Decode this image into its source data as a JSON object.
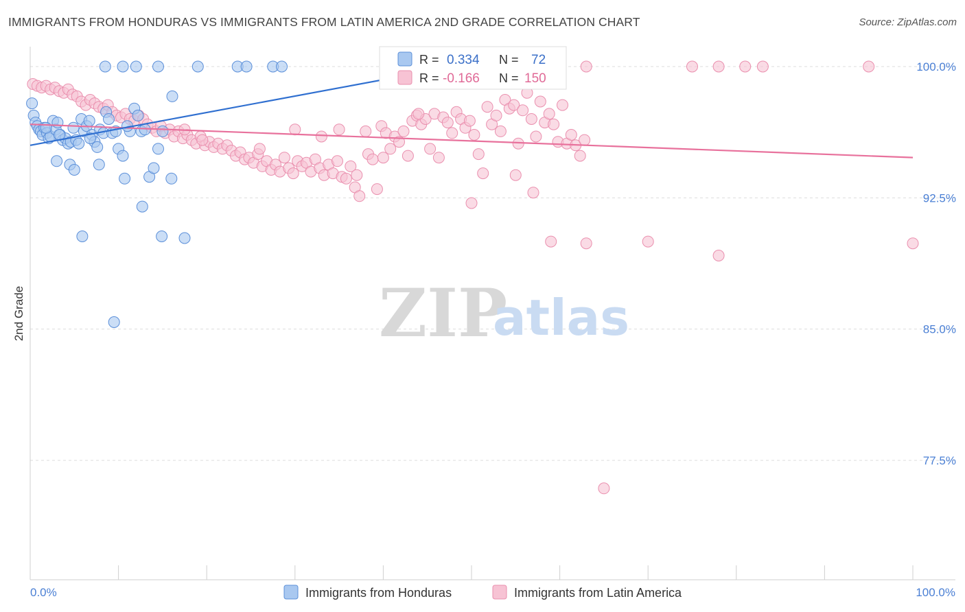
{
  "title": "IMMIGRANTS FROM HONDURAS VS IMMIGRANTS FROM LATIN AMERICA 2ND GRADE CORRELATION CHART",
  "source": "Source: ZipAtlas.com",
  "watermark": {
    "zip": "ZIP",
    "atlas": "atlas"
  },
  "colors": {
    "blue_fill": "#a9c8f0",
    "blue_stroke": "#5b8fd9",
    "blue_line": "#2f6fd0",
    "pink_fill": "#f7c3d4",
    "pink_stroke": "#ea8fae",
    "pink_line": "#e8719c",
    "grid": "#dddddd",
    "tick_text": "#4a7fd4"
  },
  "legend_box": {
    "rows": [
      {
        "r_label": "R =",
        "r_value": "0.334",
        "n_label": "N =",
        "n_value": "72",
        "color": "blue"
      },
      {
        "r_label": "R =",
        "r_value": "-0.166",
        "n_label": "N =",
        "n_value": "150",
        "color": "pink"
      }
    ]
  },
  "chart_data": {
    "type": "scatter",
    "title": "IMMIGRANTS FROM HONDURAS VS IMMIGRANTS FROM LATIN AMERICA 2ND GRADE CORRELATION CHART",
    "xlabel": "",
    "ylabel": "2nd Grade",
    "xlim": [
      0,
      100
    ],
    "ylim": [
      70,
      100.7
    ],
    "x_tick_labels": [
      "0.0%",
      "100.0%"
    ],
    "y_ticks": [
      {
        "value": 100.0,
        "label": "100.0%"
      },
      {
        "value": 92.5,
        "label": "92.5%"
      },
      {
        "value": 85.0,
        "label": "85.0%"
      },
      {
        "value": 77.5,
        "label": "77.5%"
      }
    ],
    "grid": true,
    "legend_position": "bottom",
    "series": [
      {
        "name": "Immigrants from Honduras",
        "color": "blue",
        "trend": {
          "x0": 0,
          "y0": 95.5,
          "x1": 48,
          "y1": 100.0
        },
        "points": [
          [
            0.2,
            97.9
          ],
          [
            0.4,
            97.2
          ],
          [
            0.6,
            96.8
          ],
          [
            0.8,
            96.6
          ],
          [
            1.0,
            96.4
          ],
          [
            1.2,
            96.3
          ],
          [
            1.4,
            96.1
          ],
          [
            1.6,
            96.5
          ],
          [
            1.9,
            96.2
          ],
          [
            2.1,
            95.9
          ],
          [
            2.3,
            96.0
          ],
          [
            2.6,
            96.9
          ],
          [
            2.9,
            96.4
          ],
          [
            3.1,
            96.8
          ],
          [
            3.4,
            96.1
          ],
          [
            3.7,
            95.8
          ],
          [
            4.0,
            95.9
          ],
          [
            4.3,
            95.6
          ],
          [
            4.6,
            95.7
          ],
          [
            4.9,
            96.5
          ],
          [
            5.2,
            95.8
          ],
          [
            5.5,
            95.6
          ],
          [
            5.8,
            97.0
          ],
          [
            6.1,
            96.3
          ],
          [
            6.4,
            96.6
          ],
          [
            6.7,
            96.9
          ],
          [
            7.0,
            96.1
          ],
          [
            7.3,
            95.7
          ],
          [
            7.6,
            95.4
          ],
          [
            7.9,
            96.4
          ],
          [
            8.3,
            96.2
          ],
          [
            8.6,
            97.4
          ],
          [
            8.9,
            97.0
          ],
          [
            9.3,
            96.2
          ],
          [
            9.7,
            96.3
          ],
          [
            10.0,
            95.3
          ],
          [
            10.5,
            94.9
          ],
          [
            11.3,
            96.3
          ],
          [
            11.8,
            97.6
          ],
          [
            12.2,
            97.2
          ],
          [
            12.6,
            96.3
          ],
          [
            13.0,
            96.4
          ],
          [
            13.5,
            93.7
          ],
          [
            14.0,
            94.2
          ],
          [
            14.5,
            95.3
          ],
          [
            15.0,
            96.3
          ],
          [
            16.1,
            98.3
          ],
          [
            16.0,
            93.6
          ],
          [
            3.0,
            94.6
          ],
          [
            4.5,
            94.4
          ],
          [
            5.0,
            94.1
          ],
          [
            7.8,
            94.4
          ],
          [
            10.7,
            93.6
          ],
          [
            12.7,
            92.0
          ],
          [
            14.9,
            90.3
          ],
          [
            17.5,
            90.2
          ],
          [
            5.9,
            90.3
          ],
          [
            9.5,
            85.4
          ],
          [
            8.5,
            100.0
          ],
          [
            10.5,
            100.0
          ],
          [
            12.0,
            100.0
          ],
          [
            14.5,
            100.0
          ],
          [
            19.0,
            100.0
          ],
          [
            23.5,
            100.0
          ],
          [
            24.5,
            100.0
          ],
          [
            27.5,
            100.0
          ],
          [
            28.5,
            100.0
          ],
          [
            41.0,
            100.0
          ],
          [
            1.8,
            96.5
          ],
          [
            3.3,
            96.1
          ],
          [
            6.8,
            95.9
          ],
          [
            11.0,
            96.6
          ]
        ]
      },
      {
        "name": "Immigrants from Latin America",
        "color": "pink",
        "trend": {
          "x0": 0,
          "y0": 96.7,
          "x1": 100,
          "y1": 94.8
        },
        "points": [
          [
            0.3,
            99.0
          ],
          [
            0.8,
            98.9
          ],
          [
            1.3,
            98.8
          ],
          [
            1.8,
            98.9
          ],
          [
            2.3,
            98.7
          ],
          [
            2.8,
            98.8
          ],
          [
            3.3,
            98.6
          ],
          [
            3.8,
            98.5
          ],
          [
            4.3,
            98.7
          ],
          [
            4.8,
            98.4
          ],
          [
            5.3,
            98.3
          ],
          [
            5.8,
            98.0
          ],
          [
            6.3,
            97.8
          ],
          [
            6.8,
            98.1
          ],
          [
            7.3,
            97.9
          ],
          [
            7.8,
            97.7
          ],
          [
            8.3,
            97.6
          ],
          [
            8.8,
            97.8
          ],
          [
            9.3,
            97.4
          ],
          [
            9.8,
            97.2
          ],
          [
            10.3,
            97.1
          ],
          [
            10.8,
            97.3
          ],
          [
            11.3,
            97.0
          ],
          [
            11.8,
            96.9
          ],
          [
            12.3,
            97.2
          ],
          [
            12.8,
            97.0
          ],
          [
            13.3,
            96.7
          ],
          [
            13.8,
            96.5
          ],
          [
            14.3,
            96.3
          ],
          [
            14.8,
            96.6
          ],
          [
            15.3,
            96.2
          ],
          [
            15.8,
            96.4
          ],
          [
            16.3,
            96.0
          ],
          [
            16.8,
            96.3
          ],
          [
            17.3,
            95.9
          ],
          [
            17.8,
            96.1
          ],
          [
            18.3,
            95.8
          ],
          [
            18.8,
            95.6
          ],
          [
            19.3,
            96.0
          ],
          [
            19.8,
            95.5
          ],
          [
            20.3,
            95.7
          ],
          [
            20.8,
            95.4
          ],
          [
            21.3,
            95.6
          ],
          [
            21.8,
            95.3
          ],
          [
            22.3,
            95.5
          ],
          [
            22.8,
            95.2
          ],
          [
            23.3,
            94.9
          ],
          [
            23.8,
            95.1
          ],
          [
            24.3,
            94.7
          ],
          [
            24.8,
            94.8
          ],
          [
            25.3,
            94.5
          ],
          [
            25.8,
            95.0
          ],
          [
            26.3,
            94.3
          ],
          [
            26.8,
            94.6
          ],
          [
            27.3,
            94.1
          ],
          [
            27.8,
            94.4
          ],
          [
            28.3,
            94.0
          ],
          [
            28.8,
            94.8
          ],
          [
            29.3,
            94.2
          ],
          [
            29.8,
            93.9
          ],
          [
            30.3,
            94.6
          ],
          [
            30.8,
            94.3
          ],
          [
            31.3,
            94.5
          ],
          [
            31.8,
            94.0
          ],
          [
            32.3,
            94.7
          ],
          [
            32.8,
            94.2
          ],
          [
            33.3,
            93.8
          ],
          [
            33.8,
            94.4
          ],
          [
            34.3,
            93.9
          ],
          [
            34.8,
            94.6
          ],
          [
            35.3,
            93.7
          ],
          [
            35.8,
            93.6
          ],
          [
            36.3,
            94.3
          ],
          [
            36.8,
            93.1
          ],
          [
            37.3,
            92.6
          ],
          [
            38.3,
            95.0
          ],
          [
            38.8,
            94.7
          ],
          [
            39.3,
            93.0
          ],
          [
            39.8,
            96.6
          ],
          [
            40.3,
            96.2
          ],
          [
            40.8,
            95.3
          ],
          [
            41.3,
            96.0
          ],
          [
            41.8,
            95.7
          ],
          [
            42.3,
            96.3
          ],
          [
            42.8,
            94.9
          ],
          [
            43.3,
            96.9
          ],
          [
            43.8,
            97.2
          ],
          [
            44.3,
            96.7
          ],
          [
            44.8,
            97.0
          ],
          [
            45.3,
            95.3
          ],
          [
            45.8,
            97.3
          ],
          [
            46.3,
            94.8
          ],
          [
            46.8,
            97.1
          ],
          [
            47.3,
            96.8
          ],
          [
            47.8,
            96.2
          ],
          [
            48.3,
            97.4
          ],
          [
            48.8,
            97.0
          ],
          [
            49.3,
            96.5
          ],
          [
            49.8,
            96.9
          ],
          [
            50.3,
            96.1
          ],
          [
            50.8,
            95.0
          ],
          [
            51.3,
            93.9
          ],
          [
            51.8,
            97.7
          ],
          [
            52.3,
            96.7
          ],
          [
            52.8,
            97.2
          ],
          [
            53.3,
            96.3
          ],
          [
            53.8,
            98.1
          ],
          [
            54.3,
            97.6
          ],
          [
            54.8,
            97.8
          ],
          [
            55.3,
            95.6
          ],
          [
            55.8,
            97.5
          ],
          [
            56.3,
            98.5
          ],
          [
            56.8,
            97.0
          ],
          [
            57.3,
            96.0
          ],
          [
            57.8,
            98.0
          ],
          [
            58.3,
            96.8
          ],
          [
            58.8,
            97.3
          ],
          [
            59.3,
            96.7
          ],
          [
            59.8,
            95.7
          ],
          [
            60.3,
            97.8
          ],
          [
            60.8,
            95.6
          ],
          [
            61.3,
            96.1
          ],
          [
            61.8,
            95.5
          ],
          [
            62.3,
            94.9
          ],
          [
            62.8,
            95.8
          ],
          [
            17.5,
            96.4
          ],
          [
            19.5,
            95.8
          ],
          [
            30.0,
            96.4
          ],
          [
            35.0,
            96.4
          ],
          [
            38.0,
            96.3
          ],
          [
            26.0,
            95.3
          ],
          [
            33.0,
            96.0
          ],
          [
            37.0,
            93.8
          ],
          [
            40.0,
            94.8
          ],
          [
            44.0,
            97.3
          ],
          [
            50.0,
            92.2
          ],
          [
            55.0,
            93.8
          ],
          [
            57.0,
            92.8
          ],
          [
            59.0,
            90.0
          ],
          [
            63.0,
            89.9
          ],
          [
            70.0,
            90.0
          ],
          [
            78.0,
            89.2
          ],
          [
            100.0,
            89.9
          ],
          [
            65.0,
            75.9
          ],
          [
            60.0,
            100.0
          ],
          [
            63.0,
            100.0
          ],
          [
            75.0,
            100.0
          ],
          [
            78.0,
            100.0
          ],
          [
            81.0,
            100.0
          ],
          [
            83.0,
            100.0
          ],
          [
            95.0,
            100.0
          ]
        ]
      }
    ]
  }
}
